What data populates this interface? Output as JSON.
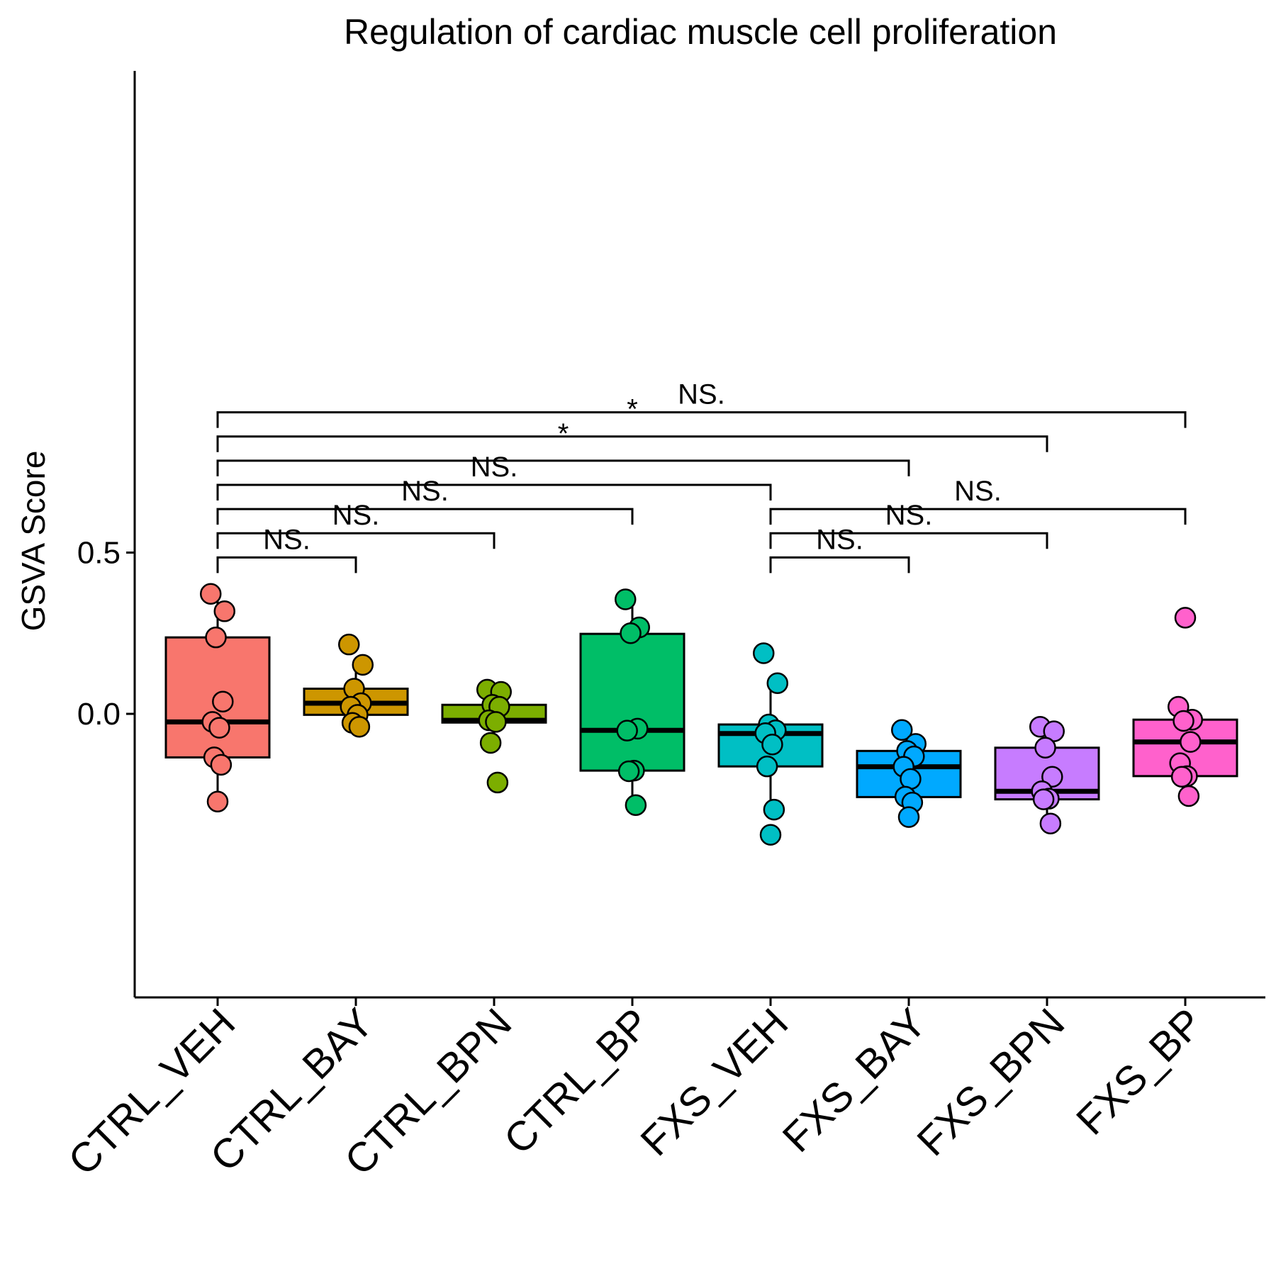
{
  "chart_data": {
    "type": "box",
    "title": "Regulation of cardiac muscle cell proliferation",
    "xlabel": "",
    "ylabel": "GSVA Score",
    "ylim": [
      -0.44,
      0.99
    ],
    "yticks": [
      {
        "value": 0.5,
        "label": "0.5"
      },
      {
        "value": 0.0,
        "label": "0.0"
      }
    ],
    "grid": false,
    "legend": "none",
    "categories": [
      "CTRL_VEH",
      "CTRL_BAY",
      "CTRL_BPN",
      "CTRL_BP",
      "FXS_VEH",
      "FXS_BAY",
      "FXS_BPN",
      "FXS_BP"
    ],
    "colors": [
      "#F8766D",
      "#CD9600",
      "#7CAE00",
      "#00BE67",
      "#00BFC4",
      "#00A9FF",
      "#C77CFF",
      "#FF61CC"
    ],
    "boxes": [
      {
        "whisker_low": -0.27,
        "q1": -0.135,
        "median": -0.025,
        "q3": 0.237,
        "whisker_high": 0.372
      },
      {
        "whisker_low": -0.03,
        "q1": -0.003,
        "median": 0.033,
        "q3": 0.078,
        "whisker_high": 0.152
      },
      {
        "whisker_low": -0.095,
        "q1": -0.027,
        "median": -0.02,
        "q3": 0.028,
        "whisker_high": 0.075
      },
      {
        "whisker_low": -0.283,
        "q1": -0.176,
        "median": -0.051,
        "q3": 0.248,
        "whisker_high": 0.345
      },
      {
        "whisker_low": -0.275,
        "q1": -0.163,
        "median": -0.061,
        "q3": -0.033,
        "whisker_high": 0.092
      },
      {
        "whisker_low": -0.32,
        "q1": -0.258,
        "median": -0.164,
        "q3": -0.115,
        "whisker_high": -0.05
      },
      {
        "whisker_low": -0.335,
        "q1": -0.265,
        "median": -0.24,
        "q3": -0.105,
        "whisker_high": -0.04
      },
      {
        "whisker_low": -0.255,
        "q1": -0.193,
        "median": -0.087,
        "q3": -0.018,
        "whisker_high": 0.022
      }
    ],
    "points": [
      [
        0.372,
        0.318,
        0.237,
        0.038,
        -0.025,
        -0.043,
        -0.135,
        -0.158,
        -0.272
      ],
      [
        0.215,
        0.152,
        0.078,
        0.033,
        0.022,
        -0.003,
        -0.028,
        -0.04
      ],
      [
        0.075,
        0.068,
        0.028,
        0.022,
        -0.02,
        -0.025,
        -0.09,
        -0.213
      ],
      [
        0.355,
        0.268,
        0.25,
        -0.046,
        -0.052,
        -0.176,
        -0.178,
        -0.283
      ],
      [
        0.188,
        0.095,
        -0.033,
        -0.051,
        -0.06,
        -0.095,
        -0.163,
        -0.297,
        -0.375
      ],
      [
        -0.05,
        -0.093,
        -0.115,
        -0.132,
        -0.164,
        -0.202,
        -0.257,
        -0.275,
        -0.32
      ],
      [
        -0.04,
        -0.054,
        -0.105,
        -0.195,
        -0.24,
        -0.263,
        -0.265,
        -0.34
      ],
      [
        0.022,
        -0.018,
        -0.022,
        -0.087,
        -0.153,
        -0.193,
        -0.195,
        -0.255,
        0.298
      ]
    ],
    "comparisons": [
      {
        "from": "CTRL_VEH",
        "to": "CTRL_BAY",
        "label": "NS.",
        "y": 0.485
      },
      {
        "from": "CTRL_VEH",
        "to": "CTRL_BPN",
        "label": "NS.",
        "y": 0.56
      },
      {
        "from": "CTRL_VEH",
        "to": "CTRL_BP",
        "label": "NS.",
        "y": 0.635
      },
      {
        "from": "CTRL_VEH",
        "to": "FXS_VEH",
        "label": "NS.",
        "y": 0.71
      },
      {
        "from": "CTRL_VEH",
        "to": "FXS_BAY",
        "label": "*",
        "y": 0.785
      },
      {
        "from": "CTRL_VEH",
        "to": "FXS_BPN",
        "label": "*",
        "y": 0.86
      },
      {
        "from": "CTRL_VEH",
        "to": "FXS_BP",
        "label": "NS.",
        "y": 0.935
      },
      {
        "from": "FXS_VEH",
        "to": "FXS_BAY",
        "label": "NS.",
        "y": 0.485
      },
      {
        "from": "FXS_VEH",
        "to": "FXS_BPN",
        "label": "NS.",
        "y": 0.56
      },
      {
        "from": "FXS_VEH",
        "to": "FXS_BP",
        "label": "NS.",
        "y": 0.635
      }
    ]
  }
}
